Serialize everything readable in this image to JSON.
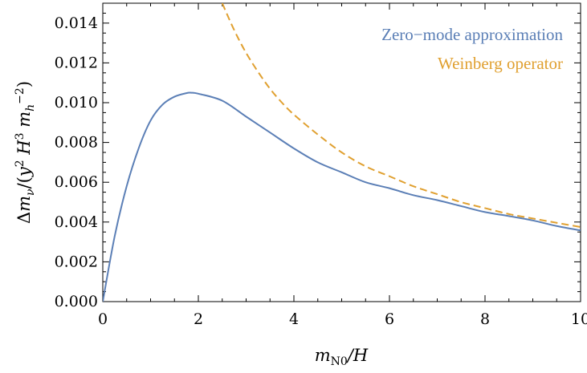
{
  "chart_data": {
    "type": "line",
    "title": "",
    "xlabel": "m_N0/H",
    "ylabel": "Δm_ν/(y² H³ m_h⁻²)",
    "xlim": [
      0,
      10
    ],
    "ylim": [
      0,
      0.015
    ],
    "x_ticks": [
      "0",
      "2",
      "4",
      "6",
      "8",
      "10"
    ],
    "y_ticks": [
      "0.000",
      "0.002",
      "0.004",
      "0.006",
      "0.008",
      "0.010",
      "0.012",
      "0.014"
    ],
    "legend_position": "top-right",
    "grid": false,
    "series": [
      {
        "name": "Zero−mode approximation",
        "style": "solid",
        "color": "#5b7fb6",
        "x": [
          0.0,
          0.25,
          0.5,
          0.75,
          1.0,
          1.25,
          1.5,
          1.75,
          1.85,
          2.0,
          2.5,
          3.0,
          3.5,
          4.0,
          4.5,
          5.0,
          5.5,
          6.0,
          6.5,
          7.0,
          7.5,
          8.0,
          8.5,
          9.0,
          9.5,
          10.0
        ],
        "y": [
          0.0,
          0.0033,
          0.0058,
          0.0077,
          0.0091,
          0.0099,
          0.0103,
          0.01048,
          0.0105,
          0.01045,
          0.0101,
          0.0093,
          0.0085,
          0.0077,
          0.007,
          0.0065,
          0.006,
          0.0057,
          0.00535,
          0.0051,
          0.0048,
          0.0045,
          0.0043,
          0.00408,
          0.0038,
          0.00358
        ]
      },
      {
        "name": "Weinberg operator",
        "style": "dashed",
        "color": "#e0a030",
        "x": [
          2.5,
          2.75,
          3.0,
          3.25,
          3.5,
          3.75,
          4.0,
          4.5,
          5.0,
          5.5,
          6.0,
          6.5,
          7.0,
          7.5,
          8.0,
          8.5,
          9.0,
          9.5,
          10.0
        ],
        "y": [
          0.015,
          0.01365,
          0.0125,
          0.01155,
          0.0107,
          0.01,
          0.0094,
          0.0084,
          0.0075,
          0.0068,
          0.0063,
          0.0058,
          0.0054,
          0.005,
          0.0047,
          0.0044,
          0.00418,
          0.00396,
          0.00375
        ]
      }
    ]
  }
}
